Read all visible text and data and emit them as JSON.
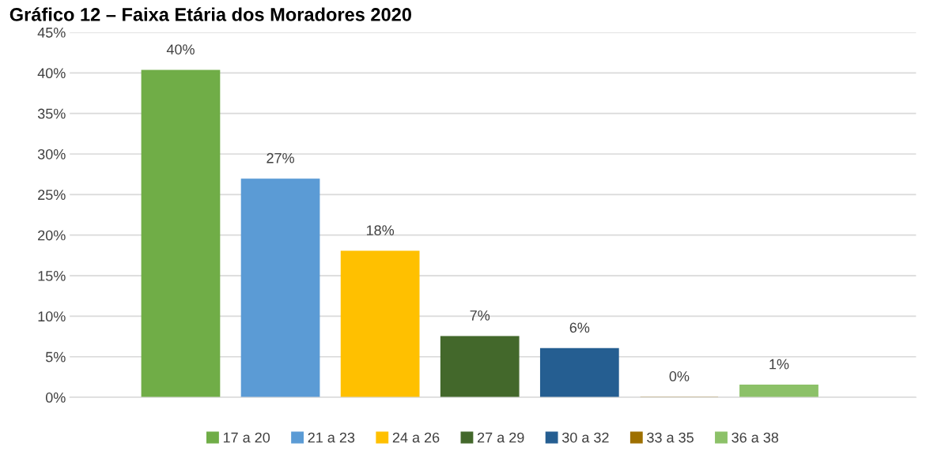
{
  "chart_data": {
    "type": "bar",
    "title": "Gráfico 12 – Faixa Etária dos Moradores 2020",
    "categories": [
      null
    ],
    "series": [
      {
        "name": "17 a 20",
        "color": "#70ad47",
        "values": [
          40.3
        ],
        "value_labels": [
          "40%"
        ]
      },
      {
        "name": "21 a 23",
        "color": "#5b9bd5",
        "values": [
          26.9
        ],
        "value_labels": [
          "27%"
        ]
      },
      {
        "name": "24 a 26",
        "color": "#ffc000",
        "values": [
          18.0
        ],
        "value_labels": [
          "18%"
        ]
      },
      {
        "name": "27 a 29",
        "color": "#43682b",
        "values": [
          7.5
        ],
        "value_labels": [
          "7%"
        ]
      },
      {
        "name": "30 a 32",
        "color": "#255e91",
        "values": [
          6.0
        ],
        "value_labels": [
          "6%"
        ]
      },
      {
        "name": "33 a 35",
        "color": "#9e7000",
        "values": [
          0
        ],
        "value_labels": [
          "0%"
        ]
      },
      {
        "name": "36 a 38",
        "color": "#8cc168",
        "values": [
          1.5
        ],
        "value_labels": [
          "1%"
        ]
      }
    ],
    "ylim": [
      0,
      45
    ],
    "yticks": [
      {
        "value": 0,
        "label": "0%"
      },
      {
        "value": 5,
        "label": "5%"
      },
      {
        "value": 10,
        "label": "10%"
      },
      {
        "value": 15,
        "label": "15%"
      },
      {
        "value": 20,
        "label": "20%"
      },
      {
        "value": 25,
        "label": "25%"
      },
      {
        "value": 30,
        "label": "30%"
      },
      {
        "value": 35,
        "label": "35%"
      },
      {
        "value": 40,
        "label": "40%"
      },
      {
        "value": 45,
        "label": "45%"
      }
    ],
    "grid": "y",
    "legend": "bottom"
  }
}
